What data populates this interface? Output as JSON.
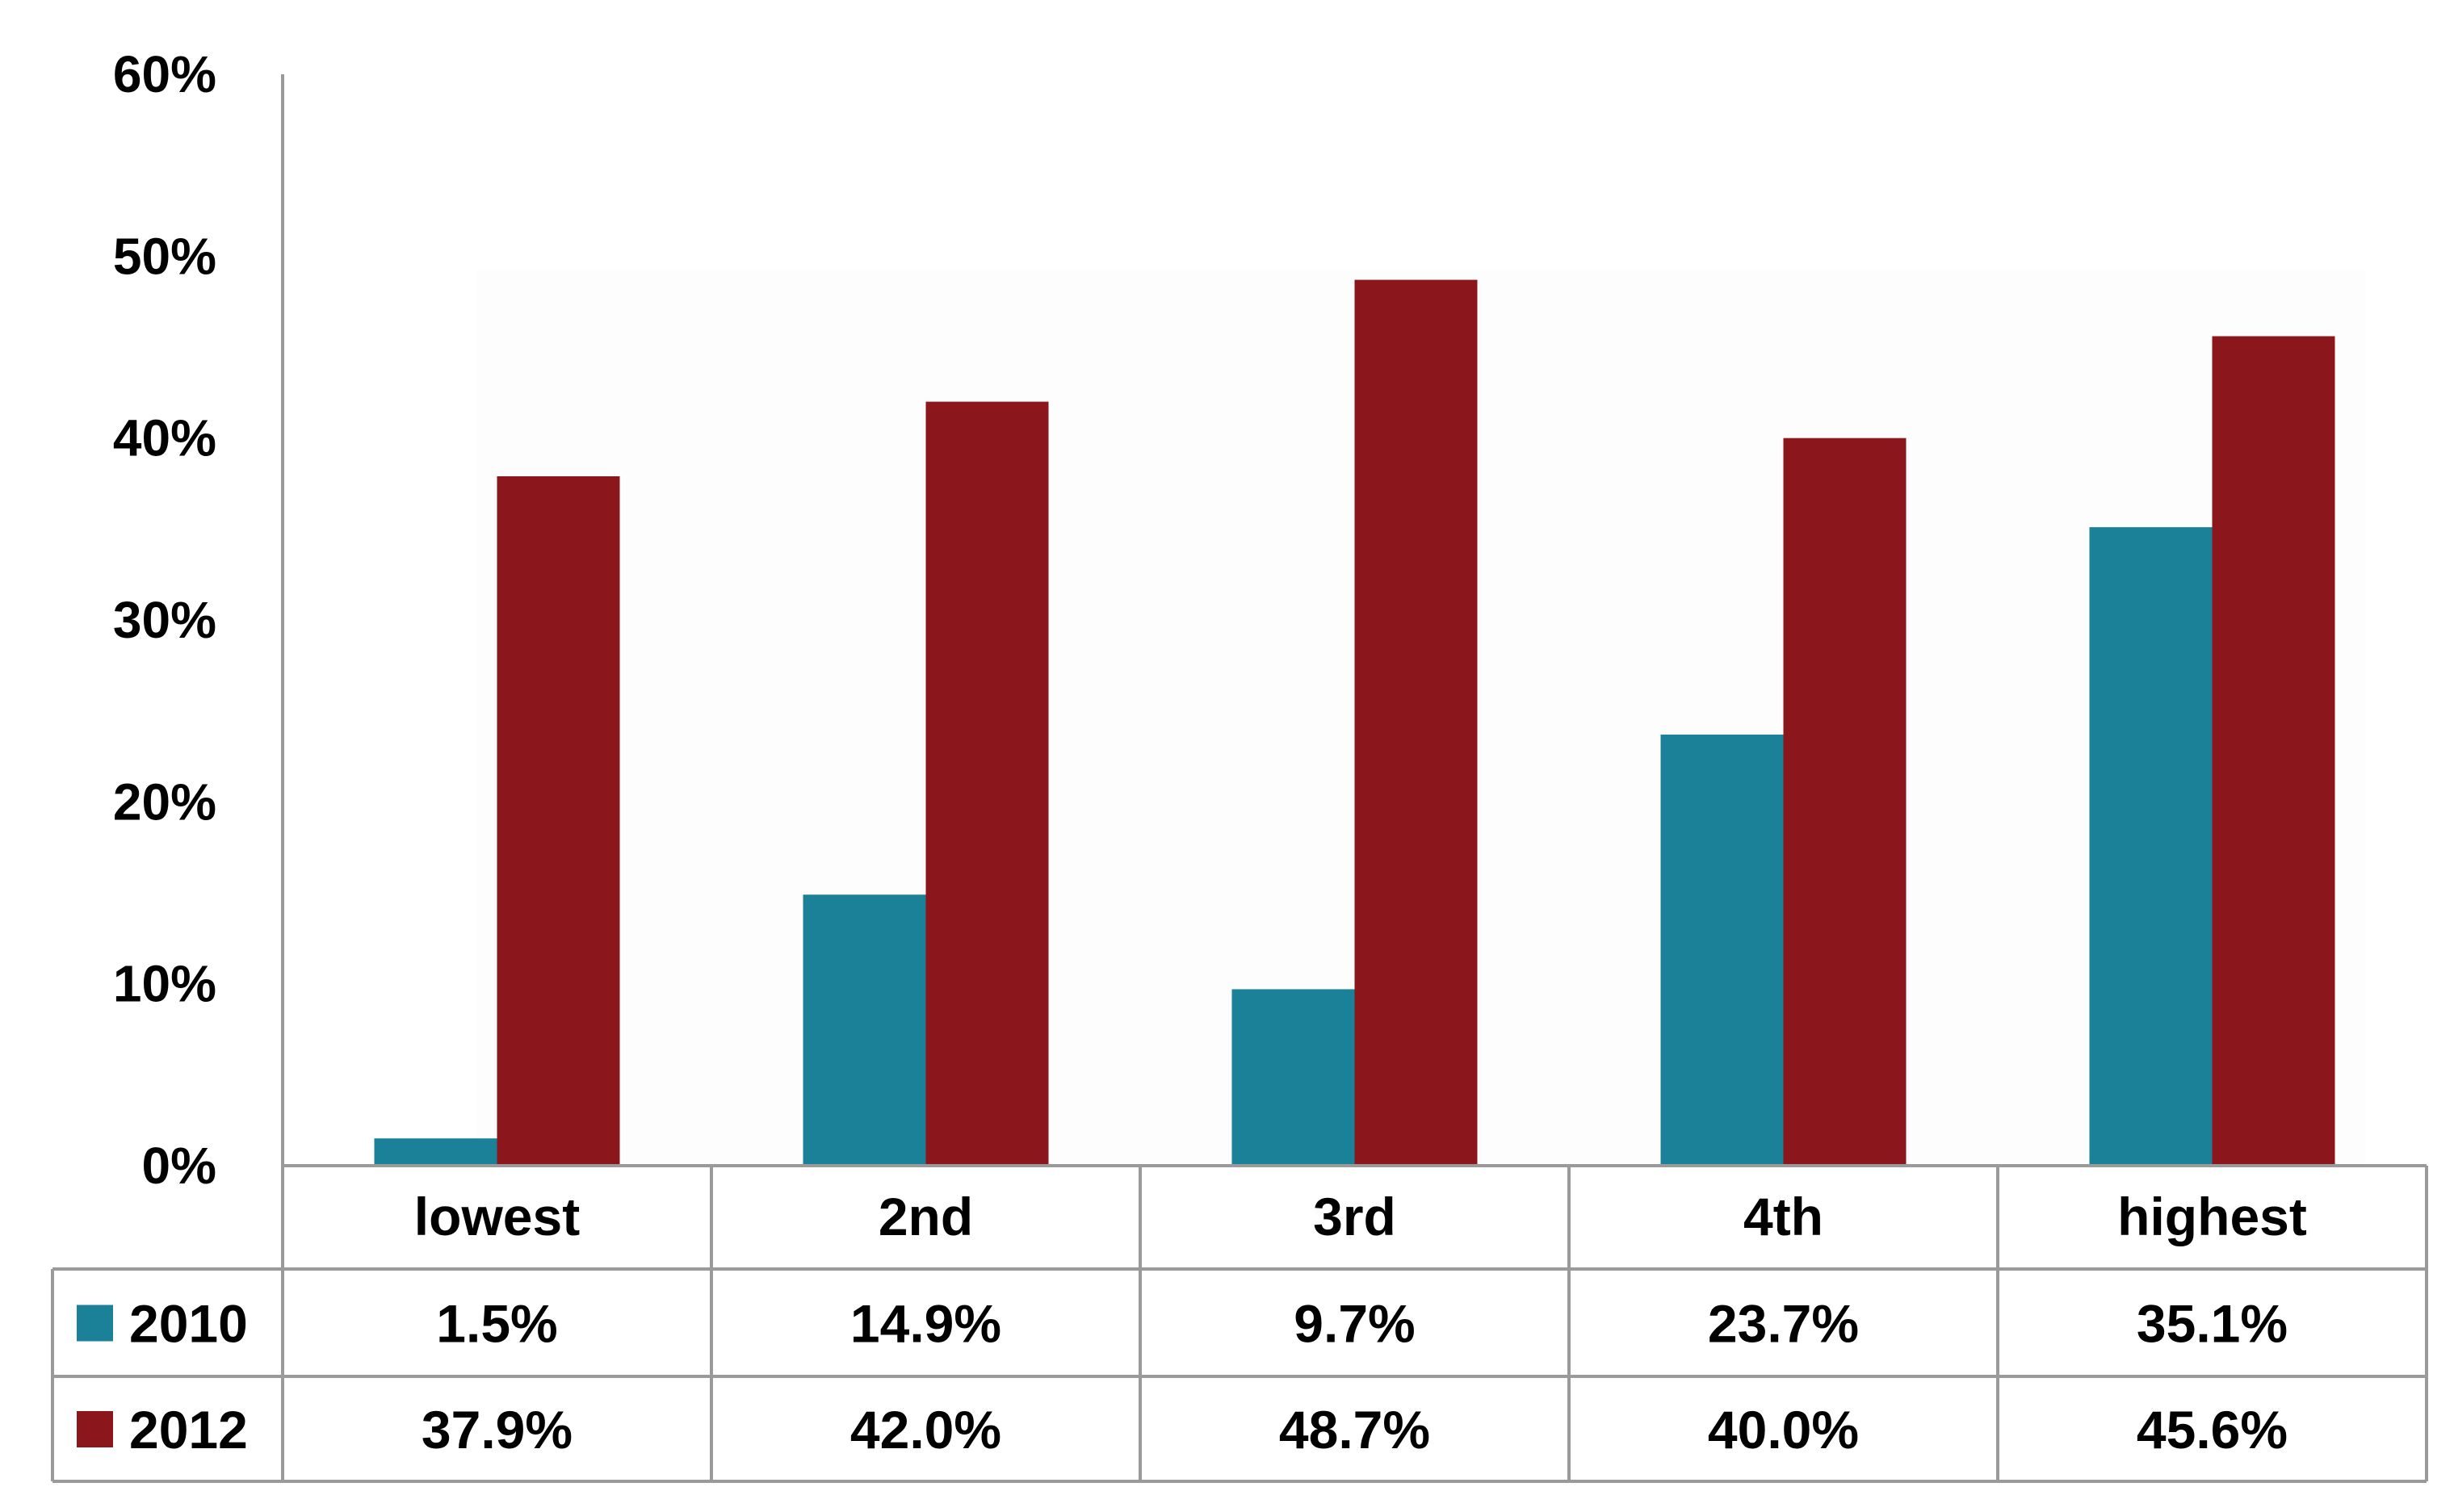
{
  "chart_data": {
    "type": "bar",
    "title": "",
    "xlabel": "",
    "ylabel": "",
    "categories": [
      "lowest",
      "2nd",
      "3rd",
      "4th",
      "highest"
    ],
    "series": [
      {
        "name": "2010",
        "values": [
          1.5,
          14.9,
          9.7,
          23.7,
          35.1
        ],
        "labels": [
          "1.5%",
          "14.9%",
          "9.7%",
          "23.7%",
          "35.1%"
        ],
        "color": "#1a8199"
      },
      {
        "name": "2012",
        "values": [
          37.9,
          42.0,
          48.7,
          40.0,
          45.6
        ],
        "labels": [
          "37.9%",
          "42.0%",
          "48.7%",
          "40.0%",
          "45.6%"
        ],
        "color": "#8b161c"
      }
    ],
    "ylim": [
      0,
      60
    ],
    "yticks": [
      0,
      10,
      20,
      30,
      40,
      50,
      60
    ],
    "ytick_labels": [
      "0%",
      "10%",
      "20%",
      "30%",
      "40%",
      "50%",
      "60%"
    ],
    "grid": false,
    "legend": "data-table",
    "colors": {
      "axis": "#9a9a9a",
      "plot_bg": "#fdfdfd"
    }
  }
}
